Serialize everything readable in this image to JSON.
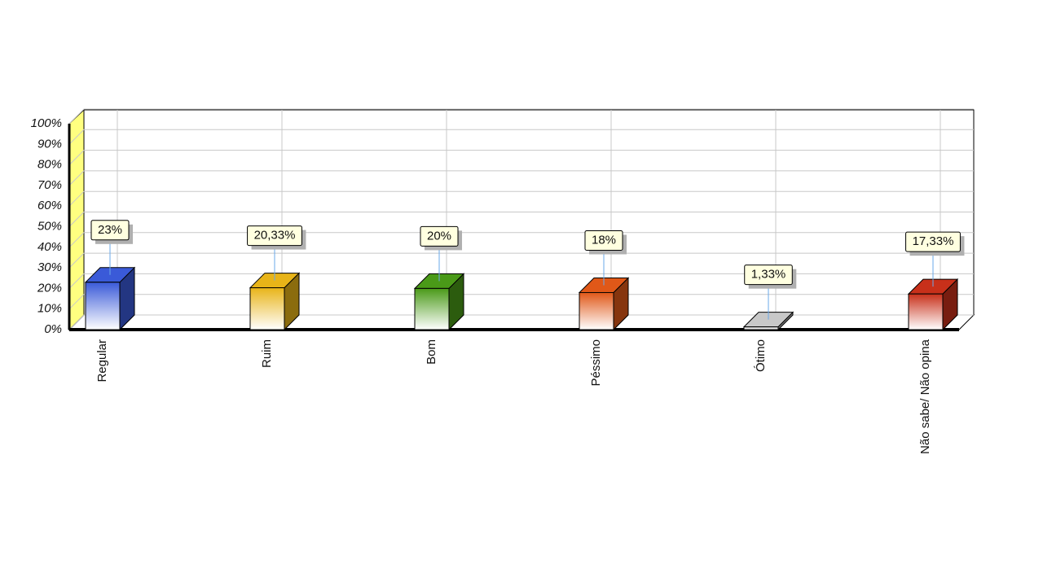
{
  "chart_data": {
    "type": "bar3d",
    "categories": [
      "Regular",
      "Ruim",
      "Bom",
      "Péssimo",
      "Ótimo",
      "Não sabe/ Não opina"
    ],
    "values": [
      23,
      20.33,
      20,
      18,
      1.33,
      17.33
    ],
    "value_labels": [
      "23%",
      "20,33%",
      "20%",
      "18%",
      "1,33%",
      "17,33%"
    ],
    "colors": [
      "#3a5ad8",
      "#e8b418",
      "#4a9a18",
      "#e05818",
      "#c8c8c8",
      "#c8301a"
    ],
    "ylim": [
      0,
      100
    ],
    "yticks": [
      {
        "value": 0,
        "label": "0%"
      },
      {
        "value": 10,
        "label": "10%"
      },
      {
        "value": 20,
        "label": "20%"
      },
      {
        "value": 30,
        "label": "30%"
      },
      {
        "value": 40,
        "label": "40%"
      },
      {
        "value": 50,
        "label": "50%"
      },
      {
        "value": 60,
        "label": "60%"
      },
      {
        "value": 70,
        "label": "70%"
      },
      {
        "value": 80,
        "label": "80%"
      },
      {
        "value": 90,
        "label": "90%"
      },
      {
        "value": 100,
        "label": "100%"
      }
    ],
    "grid": true
  }
}
